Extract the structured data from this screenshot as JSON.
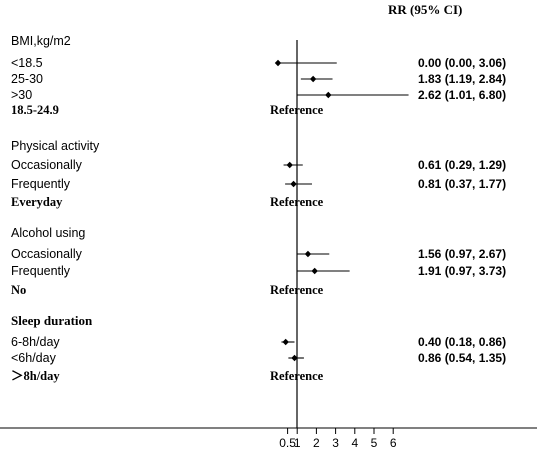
{
  "chart_data": {
    "type": "forest",
    "title": "",
    "column_header": "RR (95% CI)",
    "x_axis": {
      "scale": "linear",
      "range": [
        0,
        6.5
      ],
      "ticks": [
        {
          "value": 0.5,
          "label": "0.5"
        },
        {
          "value": 1,
          "label": "1"
        },
        {
          "value": 2,
          "label": "2"
        },
        {
          "value": 3,
          "label": "3"
        },
        {
          "value": 4,
          "label": "4"
        },
        {
          "value": 5,
          "label": "5"
        },
        {
          "value": 6,
          "label": "6"
        }
      ],
      "reference_line": 1
    },
    "groups": [
      {
        "title": "BMI,kg/m2",
        "rows": [
          {
            "label": "<18.5",
            "rr": 0.0,
            "lower": 0.0,
            "upper": 3.06,
            "text": "0.00 (0.00, 3.06)"
          },
          {
            "label": "25-30",
            "rr": 1.83,
            "lower": 1.19,
            "upper": 2.84,
            "text": "1.83 (1.19, 2.84)"
          },
          {
            "label": ">30",
            "rr": 2.62,
            "lower": 1.01,
            "upper": 6.8,
            "text": "2.62 (1.01, 6.80)"
          },
          {
            "label": "18.5-24.9",
            "reference": true,
            "ref_text": "Reference"
          }
        ]
      },
      {
        "title": "Physical activity",
        "rows": [
          {
            "label": "Occasionally",
            "rr": 0.61,
            "lower": 0.29,
            "upper": 1.29,
            "text": "0.61 (0.29, 1.29)"
          },
          {
            "label": "Frequently",
            "rr": 0.81,
            "lower": 0.37,
            "upper": 1.77,
            "text": "0.81 (0.37, 1.77)"
          },
          {
            "label": "Everyday",
            "reference": true,
            "ref_text": "Reference"
          }
        ]
      },
      {
        "title": "Alcohol using",
        "rows": [
          {
            "label": "Occasionally",
            "rr": 1.56,
            "lower": 0.97,
            "upper": 2.67,
            "text": "1.56 (0.97, 2.67)"
          },
          {
            "label": "Frequently",
            "rr": 1.91,
            "lower": 0.97,
            "upper": 3.73,
            "text": "1.91 (0.97, 3.73)"
          },
          {
            "label": "No",
            "reference": true,
            "ref_text": "Reference"
          }
        ]
      },
      {
        "title": "Sleep duration",
        "rows": [
          {
            "label": "6-8h/day",
            "rr": 0.4,
            "lower": 0.18,
            "upper": 0.86,
            "text": "0.40 (0.18, 0.86)"
          },
          {
            "label": "<6h/day",
            "rr": 0.86,
            "lower": 0.54,
            "upper": 1.35,
            "text": "0.86 (0.54, 1.35)"
          },
          {
            "label": "＞8h/day",
            "reference": true,
            "ref_text": "Reference"
          }
        ]
      }
    ]
  }
}
